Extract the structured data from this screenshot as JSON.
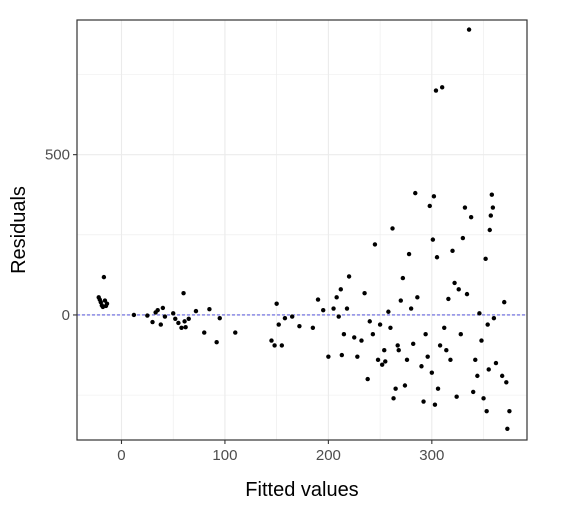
{
  "chart_data": {
    "type": "scatter",
    "xlabel": "Fitted values",
    "ylabel": "Residuals",
    "xlim": [
      -43,
      392
    ],
    "ylim": [
      -390,
      920
    ],
    "x_ticks": [
      0,
      100,
      200,
      300
    ],
    "x_tick_labels": [
      "0",
      "100",
      "200",
      "300"
    ],
    "y_ticks": [
      0,
      500
    ],
    "y_tick_labels": [
      "0",
      "500"
    ],
    "grid": true,
    "reference_line": {
      "y": 0,
      "style": "dashed",
      "color": "#3b3bd6"
    },
    "point_color": "#000000",
    "points": [
      [
        -22,
        55
      ],
      [
        -21,
        48
      ],
      [
        -20,
        40
      ],
      [
        -19,
        30
      ],
      [
        -18,
        25
      ],
      [
        -17,
        118
      ],
      [
        -16,
        45
      ],
      [
        -15,
        28
      ],
      [
        -14,
        35
      ],
      [
        12,
        0
      ],
      [
        25,
        -2
      ],
      [
        30,
        -22
      ],
      [
        33,
        8
      ],
      [
        35,
        15
      ],
      [
        38,
        -30
      ],
      [
        40,
        22
      ],
      [
        42,
        -5
      ],
      [
        50,
        5
      ],
      [
        52,
        -12
      ],
      [
        55,
        -25
      ],
      [
        58,
        -40
      ],
      [
        60,
        68
      ],
      [
        61,
        -20
      ],
      [
        62,
        -38
      ],
      [
        65,
        -12
      ],
      [
        72,
        12
      ],
      [
        80,
        -55
      ],
      [
        85,
        18
      ],
      [
        92,
        -85
      ],
      [
        95,
        -10
      ],
      [
        110,
        -55
      ],
      [
        145,
        -80
      ],
      [
        148,
        -95
      ],
      [
        150,
        35
      ],
      [
        152,
        -30
      ],
      [
        155,
        -95
      ],
      [
        158,
        -10
      ],
      [
        165,
        -5
      ],
      [
        172,
        -35
      ],
      [
        185,
        -40
      ],
      [
        190,
        48
      ],
      [
        195,
        15
      ],
      [
        200,
        -130
      ],
      [
        205,
        20
      ],
      [
        208,
        55
      ],
      [
        210,
        -5
      ],
      [
        212,
        80
      ],
      [
        213,
        -125
      ],
      [
        215,
        -60
      ],
      [
        218,
        20
      ],
      [
        220,
        120
      ],
      [
        225,
        -70
      ],
      [
        228,
        -130
      ],
      [
        232,
        -80
      ],
      [
        235,
        68
      ],
      [
        238,
        -200
      ],
      [
        240,
        -20
      ],
      [
        243,
        -60
      ],
      [
        245,
        220
      ],
      [
        248,
        -140
      ],
      [
        250,
        -30
      ],
      [
        252,
        -155
      ],
      [
        254,
        -110
      ],
      [
        255,
        -145
      ],
      [
        258,
        10
      ],
      [
        260,
        -40
      ],
      [
        262,
        270
      ],
      [
        263,
        -260
      ],
      [
        265,
        -230
      ],
      [
        267,
        -95
      ],
      [
        268,
        -110
      ],
      [
        270,
        45
      ],
      [
        272,
        115
      ],
      [
        274,
        -220
      ],
      [
        276,
        -140
      ],
      [
        278,
        190
      ],
      [
        280,
        20
      ],
      [
        282,
        -90
      ],
      [
        284,
        380
      ],
      [
        286,
        55
      ],
      [
        290,
        -160
      ],
      [
        292,
        -270
      ],
      [
        294,
        -60
      ],
      [
        296,
        -130
      ],
      [
        298,
        340
      ],
      [
        300,
        -180
      ],
      [
        301,
        235
      ],
      [
        302,
        370
      ],
      [
        303,
        -280
      ],
      [
        304,
        700
      ],
      [
        305,
        180
      ],
      [
        306,
        -230
      ],
      [
        308,
        -95
      ],
      [
        310,
        710
      ],
      [
        312,
        -40
      ],
      [
        314,
        -110
      ],
      [
        316,
        50
      ],
      [
        318,
        -140
      ],
      [
        320,
        200
      ],
      [
        322,
        100
      ],
      [
        324,
        -255
      ],
      [
        326,
        80
      ],
      [
        328,
        -60
      ],
      [
        330,
        240
      ],
      [
        332,
        335
      ],
      [
        334,
        65
      ],
      [
        336,
        890
      ],
      [
        338,
        305
      ],
      [
        340,
        -240
      ],
      [
        342,
        -140
      ],
      [
        344,
        -190
      ],
      [
        346,
        5
      ],
      [
        348,
        -80
      ],
      [
        350,
        -260
      ],
      [
        352,
        175
      ],
      [
        353,
        -300
      ],
      [
        354,
        -30
      ],
      [
        355,
        -170
      ],
      [
        356,
        265
      ],
      [
        357,
        310
      ],
      [
        358,
        375
      ],
      [
        359,
        335
      ],
      [
        360,
        -10
      ],
      [
        362,
        -150
      ],
      [
        368,
        -190
      ],
      [
        370,
        40
      ],
      [
        372,
        -210
      ],
      [
        373,
        -355
      ],
      [
        375,
        -300
      ]
    ]
  }
}
